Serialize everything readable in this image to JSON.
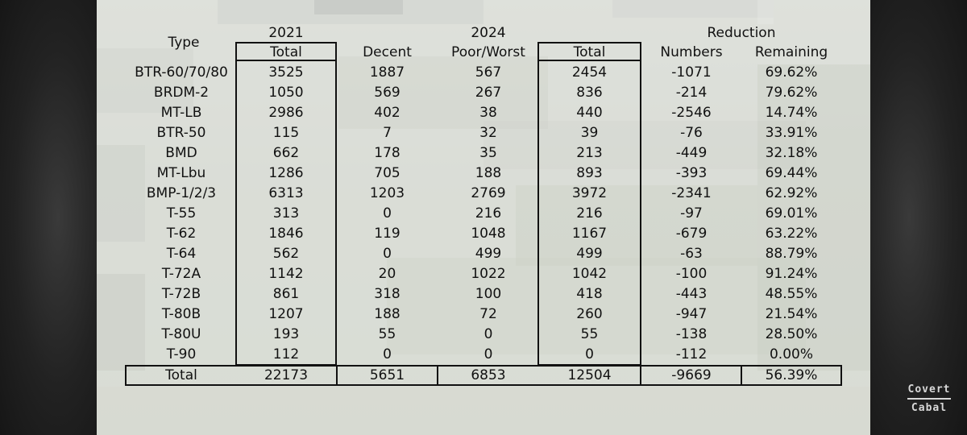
{
  "header": {
    "type_label": "Type",
    "year_2021": "2021",
    "year_2024": "2024",
    "reduction": "Reduction",
    "col_total_2021": "Total",
    "col_decent": "Decent",
    "col_poor": "Poor/Worst",
    "col_total_2024": "Total",
    "col_numbers": "Numbers",
    "col_remaining": "Remaining"
  },
  "rows": [
    {
      "type": "BTR-60/70/80",
      "t2021": "3525",
      "decent": "1887",
      "poor": "567",
      "t2024": "2454",
      "numbers": "-1071",
      "remaining": "69.62%"
    },
    {
      "type": "BRDM-2",
      "t2021": "1050",
      "decent": "569",
      "poor": "267",
      "t2024": "836",
      "numbers": "-214",
      "remaining": "79.62%"
    },
    {
      "type": "MT-LB",
      "t2021": "2986",
      "decent": "402",
      "poor": "38",
      "t2024": "440",
      "numbers": "-2546",
      "remaining": "14.74%"
    },
    {
      "type": "BTR-50",
      "t2021": "115",
      "decent": "7",
      "poor": "32",
      "t2024": "39",
      "numbers": "-76",
      "remaining": "33.91%"
    },
    {
      "type": "BMD",
      "t2021": "662",
      "decent": "178",
      "poor": "35",
      "t2024": "213",
      "numbers": "-449",
      "remaining": "32.18%"
    },
    {
      "type": "MT-Lbu",
      "t2021": "1286",
      "decent": "705",
      "poor": "188",
      "t2024": "893",
      "numbers": "-393",
      "remaining": "69.44%"
    },
    {
      "type": "BMP-1/2/3",
      "t2021": "6313",
      "decent": "1203",
      "poor": "2769",
      "t2024": "3972",
      "numbers": "-2341",
      "remaining": "62.92%"
    },
    {
      "type": "T-55",
      "t2021": "313",
      "decent": "0",
      "poor": "216",
      "t2024": "216",
      "numbers": "-97",
      "remaining": "69.01%"
    },
    {
      "type": "T-62",
      "t2021": "1846",
      "decent": "119",
      "poor": "1048",
      "t2024": "1167",
      "numbers": "-679",
      "remaining": "63.22%"
    },
    {
      "type": "T-64",
      "t2021": "562",
      "decent": "0",
      "poor": "499",
      "t2024": "499",
      "numbers": "-63",
      "remaining": "88.79%"
    },
    {
      "type": "T-72A",
      "t2021": "1142",
      "decent": "20",
      "poor": "1022",
      "t2024": "1042",
      "numbers": "-100",
      "remaining": "91.24%"
    },
    {
      "type": "T-72B",
      "t2021": "861",
      "decent": "318",
      "poor": "100",
      "t2024": "418",
      "numbers": "-443",
      "remaining": "48.55%"
    },
    {
      "type": "T-80B",
      "t2021": "1207",
      "decent": "188",
      "poor": "72",
      "t2024": "260",
      "numbers": "-947",
      "remaining": "21.54%"
    },
    {
      "type": "T-80U",
      "t2021": "193",
      "decent": "55",
      "poor": "0",
      "t2024": "55",
      "numbers": "-138",
      "remaining": "28.50%"
    },
    {
      "type": "T-90",
      "t2021": "112",
      "decent": "0",
      "poor": "0",
      "t2024": "0",
      "numbers": "-112",
      "remaining": "0.00%"
    }
  ],
  "total": {
    "type": "Total",
    "t2021": "22173",
    "decent": "5651",
    "poor": "6853",
    "t2024": "12504",
    "numbers": "-9669",
    "remaining": "56.39%"
  },
  "watermark": {
    "line1": "Covert",
    "line2": "Cabal"
  }
}
